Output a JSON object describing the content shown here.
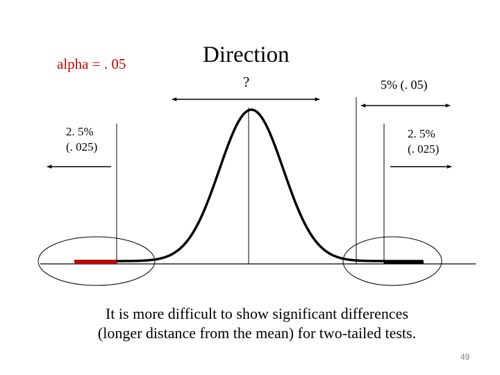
{
  "slide": {
    "alpha_label": "alpha = . 05",
    "title": "Direction",
    "question_mark": "?",
    "one_tail_label": "5% (. 05)",
    "left_tail": {
      "percent": "2. 5%",
      "decimal": "(. 025)"
    },
    "right_tail": {
      "percent": "2. 5%",
      "decimal": "(. 025)"
    },
    "caption_line1": "It is more difficult to show significant differences",
    "caption_line2": "(longer distance from the mean) for two-tailed tests.",
    "page_number": "49"
  },
  "colors": {
    "text": "#000000",
    "alpha_text": "#cc0000",
    "left_tail_region": "#cc0000",
    "right_tail_region": "#000000",
    "page_number": "#808080"
  }
}
